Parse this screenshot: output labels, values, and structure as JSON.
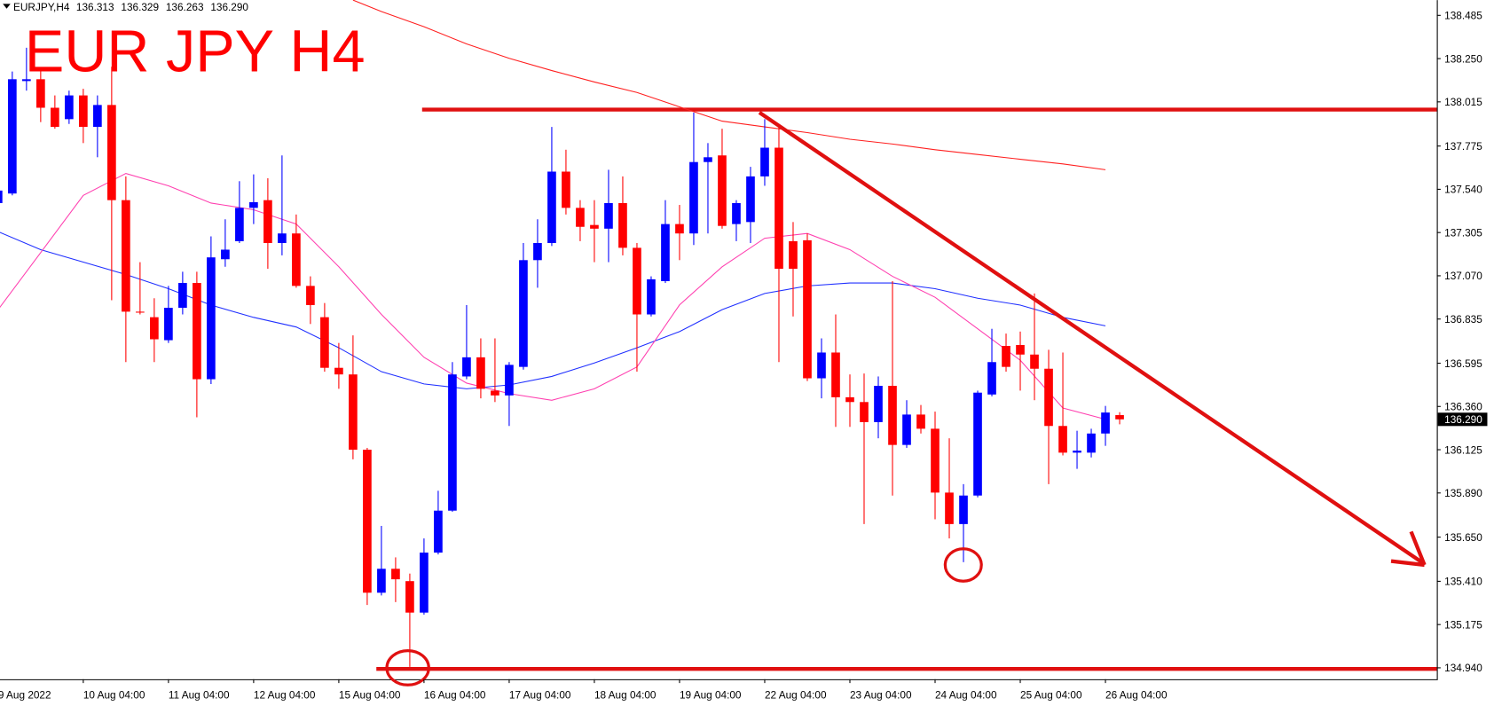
{
  "header": {
    "symbol": "EURJPY,H4",
    "quote": [
      "136.313",
      "136.329",
      "136.263",
      "136.290"
    ]
  },
  "chart_data": {
    "type": "candlestick",
    "title": "EUR JPY H4",
    "categories": [
      "9 Aug 2022",
      null,
      null,
      null,
      null,
      null,
      "10 Aug 04:00",
      null,
      null,
      null,
      null,
      null,
      "11 Aug 04:00",
      null,
      null,
      null,
      null,
      null,
      "12 Aug 04:00",
      null,
      null,
      null,
      null,
      null,
      "15 Aug 04:00",
      null,
      null,
      null,
      null,
      null,
      "16 Aug 04:00",
      null,
      null,
      null,
      null,
      null,
      "17 Aug 04:00",
      null,
      null,
      null,
      null,
      null,
      "18 Aug 04:00",
      null,
      null,
      null,
      null,
      null,
      "19 Aug 04:00",
      null,
      null,
      null,
      null,
      null,
      "22 Aug 04:00",
      null,
      null,
      null,
      null,
      null,
      "23 Aug 04:00",
      null,
      null,
      null,
      null,
      null,
      "24 Aug 04:00",
      null,
      null,
      null,
      null,
      null,
      "25 Aug 04:00",
      null,
      null,
      null,
      null,
      null,
      "26 Aug 04:00",
      null
    ],
    "open": [
      137.465,
      137.517,
      138.128,
      138.138,
      137.983,
      137.921,
      138.05,
      137.879,
      137.998,
      137.481,
      136.875,
      136.845,
      136.72,
      136.896,
      137.031,
      136.508,
      137.16,
      137.258,
      137.439,
      137.481,
      137.248,
      137.3,
      137.015,
      136.845,
      136.57,
      136.534,
      136.125,
      135.348,
      135.478,
      135.411,
      135.24,
      135.566,
      135.794,
      136.523,
      136.627,
      136.446,
      136.42,
      136.575,
      137.155,
      137.248,
      137.636,
      137.439,
      137.346,
      137.326,
      137.465,
      137.222,
      136.86,
      137.041,
      137.351,
      137.3,
      137.688,
      137.724,
      137.351,
      137.362,
      137.61,
      137.766,
      137.258,
      137.263,
      136.513,
      136.653,
      136.41,
      136.384,
      136.275,
      136.472,
      136.151,
      136.316,
      136.239,
      135.892,
      135.721,
      135.876,
      136.425,
      136.689,
      136.694,
      136.642,
      136.565,
      136.254,
      136.109,
      136.109,
      136.213,
      136.313
    ],
    "high": [
      137.55,
      138.18,
      138.309,
      138.195,
      138.05,
      138.076,
      138.086,
      138.05,
      138.206,
      137.61,
      137.144,
      136.948,
      137.015,
      137.092,
      137.092,
      137.284,
      137.377,
      137.584,
      137.621,
      137.6,
      137.724,
      137.403,
      137.067,
      136.922,
      136.705,
      136.746,
      136.135,
      135.711,
      135.54,
      135.452,
      135.643,
      135.902,
      136.601,
      136.911,
      136.73,
      136.73,
      136.601,
      137.248,
      137.377,
      137.879,
      137.755,
      137.481,
      137.481,
      137.646,
      137.61,
      137.248,
      137.067,
      137.481,
      137.455,
      137.957,
      137.791,
      137.869,
      137.481,
      137.662,
      137.921,
      137.895,
      137.362,
      137.3,
      136.73,
      136.86,
      136.534,
      136.539,
      136.523,
      137.041,
      136.394,
      136.368,
      136.332,
      136.187,
      135.938,
      136.446,
      136.782,
      136.756,
      136.767,
      136.974,
      136.668,
      136.653,
      136.228,
      136.239,
      136.363,
      136.329
    ],
    "low": [
      137.44,
      137.507,
      138.076,
      137.905,
      137.869,
      137.895,
      137.791,
      137.714,
      136.937,
      136.601,
      136.86,
      136.601,
      136.705,
      136.86,
      136.301,
      136.482,
      137.119,
      137.248,
      137.351,
      137.108,
      137.181,
      137.005,
      136.808,
      136.549,
      136.456,
      136.073,
      135.281,
      135.333,
      135.297,
      134.945,
      135.229,
      135.556,
      135.788,
      136.508,
      136.404,
      136.384,
      136.254,
      136.56,
      137.005,
      137.232,
      137.403,
      137.258,
      137.144,
      137.144,
      137.181,
      136.549,
      136.849,
      137.031,
      137.155,
      137.237,
      137.3,
      137.326,
      137.258,
      137.248,
      137.559,
      136.601,
      136.849,
      136.498,
      136.404,
      136.249,
      136.249,
      135.721,
      136.187,
      135.876,
      136.135,
      136.213,
      135.747,
      135.643,
      135.514,
      135.866,
      136.415,
      136.549,
      136.446,
      136.394,
      135.938,
      136.094,
      136.021,
      136.083,
      136.146,
      136.263
    ],
    "close": [
      137.533,
      138.138,
      138.138,
      137.983,
      137.879,
      138.05,
      137.879,
      137.998,
      137.481,
      136.875,
      136.87,
      136.725,
      136.896,
      137.031,
      136.508,
      137.17,
      137.212,
      137.439,
      137.47,
      137.248,
      137.3,
      137.015,
      136.911,
      136.57,
      136.534,
      136.125,
      135.348,
      135.478,
      135.421,
      135.24,
      135.566,
      135.794,
      136.534,
      136.627,
      136.456,
      136.42,
      136.586,
      137.155,
      137.248,
      137.636,
      137.439,
      137.336,
      137.326,
      137.465,
      137.222,
      136.86,
      137.051,
      137.351,
      137.3,
      137.688,
      137.714,
      137.341,
      137.465,
      137.61,
      137.766,
      137.108,
      137.108,
      136.513,
      136.653,
      136.41,
      136.384,
      136.275,
      136.472,
      136.151,
      136.316,
      136.239,
      135.892,
      135.721,
      135.876,
      136.435,
      136.601,
      136.575,
      136.642,
      136.565,
      136.254,
      136.109,
      136.12,
      136.213,
      136.327,
      136.29
    ],
    "up_color": "#0000ff",
    "down_color": "#ff0000",
    "moving_averages": [
      {
        "color": "#ff2020",
        "x": [
          25,
          27,
          30,
          33,
          36,
          39,
          42,
          45,
          48,
          51,
          54,
          57,
          60,
          63,
          66,
          69,
          72,
          75,
          78
        ],
        "values": [
          138.568,
          138.506,
          138.423,
          138.33,
          138.252,
          138.185,
          138.123,
          138.066,
          137.988,
          137.91,
          137.879,
          137.848,
          137.812,
          137.786,
          137.755,
          137.729,
          137.703,
          137.678,
          137.646
        ]
      },
      {
        "color": "#2030ff",
        "x": [
          0,
          3,
          6,
          9,
          12,
          15,
          18,
          21,
          24,
          27,
          30,
          33,
          36,
          39,
          42,
          45,
          48,
          51,
          54,
          57,
          60,
          63,
          66,
          69,
          72,
          75,
          78
        ],
        "values": [
          137.31,
          137.212,
          137.144,
          137.077,
          137.0,
          136.911,
          136.844,
          136.792,
          136.679,
          136.549,
          136.482,
          136.456,
          136.477,
          136.523,
          136.596,
          136.679,
          136.767,
          136.886,
          136.974,
          137.015,
          137.031,
          137.031,
          137.0,
          136.948,
          136.911,
          136.844,
          136.798
        ]
      },
      {
        "color": "#ff40b0",
        "x": [
          0,
          3,
          6,
          9,
          12,
          15,
          18,
          21,
          24,
          27,
          30,
          33,
          36,
          39,
          42,
          45,
          48,
          51,
          54,
          57,
          60,
          63,
          66,
          69,
          72,
          75,
          78
        ],
        "values": [
          136.886,
          137.196,
          137.507,
          137.626,
          137.559,
          137.465,
          137.429,
          137.351,
          137.119,
          136.86,
          136.627,
          136.487,
          136.43,
          136.394,
          136.456,
          136.575,
          136.912,
          137.119,
          137.274,
          137.3,
          137.212,
          137.067,
          136.953,
          136.782,
          136.611,
          136.352,
          136.29
        ]
      }
    ],
    "levels": [
      137.973,
      134.934
    ],
    "level_color": "#e01010",
    "current_price": {
      "value": 136.29,
      "label": "136.290"
    },
    "ylim": [
      134.883,
      138.568
    ],
    "yticks": [
      138.485,
      {
        "value": 138.25,
        "label": "138.250"
      },
      138.015,
      137.775,
      {
        "value": 137.54,
        "label": "137.540"
      },
      137.305,
      {
        "value": 137.07,
        "label": "137.070"
      },
      136.835,
      136.595,
      {
        "value": 136.36,
        "label": "136.360"
      },
      136.125,
      {
        "value": 135.89,
        "label": "135.890"
      },
      {
        "value": 135.65,
        "label": "135.650"
      },
      {
        "value": 135.41,
        "label": "135.410"
      },
      135.175,
      {
        "value": 134.94,
        "label": "134.940"
      }
    ],
    "grid": false
  }
}
